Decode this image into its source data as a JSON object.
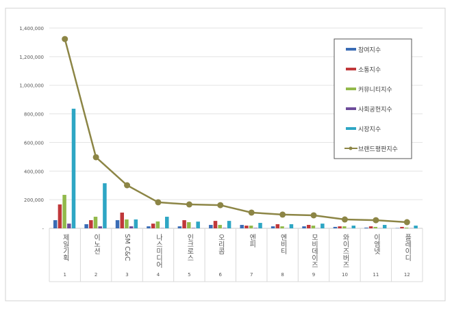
{
  "chart_data": {
    "type": "bar",
    "categories": [
      "제일기획",
      "이노션",
      "SM C&C",
      "나스미디어",
      "인크로스",
      "오리콤",
      "엔피",
      "엔비티",
      "모비데이즈",
      "와이즈버즈",
      "이엠넷",
      "플레이디"
    ],
    "ranks": [
      "1",
      "2",
      "3",
      "4",
      "5",
      "6",
      "7",
      "8",
      "9",
      "10",
      "11",
      "12"
    ],
    "ylim": [
      0,
      1400000
    ],
    "yticks": [
      0,
      200000,
      400000,
      600000,
      800000,
      1000000,
      1200000,
      1400000
    ],
    "ytick_labels": [
      "-",
      "200,000",
      "400,000",
      "600,000",
      "800,000",
      "1,000,000",
      "1,200,000",
      "1,400,000"
    ],
    "grid": true,
    "legend_position": "top-right",
    "series": [
      {
        "name": "참여지수",
        "type": "bar",
        "color": "#3a6cb5",
        "values": [
          57000,
          29000,
          57000,
          14000,
          14000,
          24000,
          24000,
          14000,
          14000,
          10000,
          5000,
          2000
        ]
      },
      {
        "name": "소통지수",
        "type": "bar",
        "color": "#c0383a",
        "values": [
          167000,
          57000,
          110000,
          33000,
          57000,
          52000,
          19000,
          29000,
          24000,
          14000,
          14000,
          10000
        ]
      },
      {
        "name": "커뮤니티지수",
        "type": "bar",
        "color": "#92b94a",
        "values": [
          234000,
          81000,
          62000,
          48000,
          43000,
          24000,
          19000,
          14000,
          19000,
          14000,
          10000,
          5000
        ]
      },
      {
        "name": "사회공헌지수",
        "type": "bar",
        "color": "#6d4c9a",
        "values": [
          33000,
          14000,
          14000,
          2000,
          3000,
          3000,
          3000,
          1000,
          1000,
          1000,
          1000,
          1000
        ]
      },
      {
        "name": "시장지수",
        "type": "bar",
        "color": "#2ea6c4",
        "values": [
          836000,
          315000,
          62000,
          81000,
          47000,
          52000,
          38000,
          29000,
          33000,
          19000,
          24000,
          19000
        ]
      },
      {
        "name": "브랜드평판지수",
        "type": "line",
        "color": "#8c8545",
        "values": [
          1323000,
          497000,
          301000,
          182000,
          167000,
          162000,
          110000,
          96000,
          91000,
          62000,
          57000,
          43000
        ]
      }
    ]
  }
}
